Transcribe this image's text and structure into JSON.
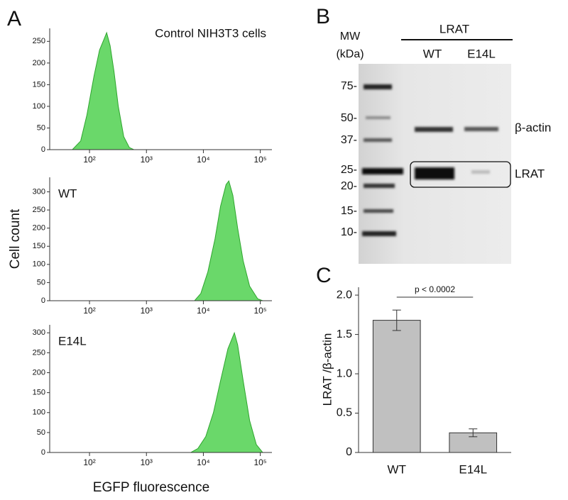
{
  "chart_data": [
    {
      "type": "area",
      "panel": "A",
      "title": "Control NIH3T3 cells",
      "log_x": true,
      "xlim": [
        20,
        160000
      ],
      "xticks": [
        {
          "value": 100,
          "label": "10²"
        },
        {
          "value": 1000,
          "label": "10³"
        },
        {
          "value": 10000,
          "label": "10⁴"
        },
        {
          "value": 100000,
          "label": "10⁵"
        }
      ],
      "ylim": [
        0,
        280
      ],
      "yticks": [
        0,
        50,
        100,
        150,
        200,
        250
      ],
      "color": "#6ad86a",
      "line_color": "#2ea52e",
      "x": [
        50,
        70,
        90,
        120,
        150,
        180,
        200,
        230,
        270,
        320,
        400,
        500,
        600
      ],
      "values": [
        0,
        20,
        80,
        170,
        230,
        255,
        270,
        240,
        180,
        100,
        30,
        5,
        0
      ]
    },
    {
      "type": "area",
      "title": "WT",
      "ylabel": "Cell count",
      "log_x": true,
      "xlim": [
        20,
        160000
      ],
      "xticks": [
        {
          "value": 100,
          "label": "10²"
        },
        {
          "value": 1000,
          "label": "10³"
        },
        {
          "value": 10000,
          "label": "10⁴"
        },
        {
          "value": 100000,
          "label": "10⁵"
        }
      ],
      "ylim": [
        0,
        340
      ],
      "yticks": [
        0,
        50,
        100,
        150,
        200,
        250,
        300
      ],
      "color": "#6ad86a",
      "line_color": "#2ea52e",
      "x": [
        7000,
        9000,
        12000,
        16000,
        20000,
        25000,
        28000,
        33000,
        40000,
        50000,
        65000,
        90000,
        110000
      ],
      "values": [
        0,
        20,
        80,
        170,
        260,
        320,
        330,
        290,
        200,
        110,
        40,
        5,
        0
      ]
    },
    {
      "type": "area",
      "title": "E14L",
      "xlabel": "EGFP fluorescence",
      "log_x": true,
      "xlim": [
        20,
        160000
      ],
      "xticks": [
        {
          "value": 100,
          "label": "10²"
        },
        {
          "value": 1000,
          "label": "10³"
        },
        {
          "value": 10000,
          "label": "10⁴"
        },
        {
          "value": 100000,
          "label": "10⁵"
        }
      ],
      "ylim": [
        0,
        320
      ],
      "yticks": [
        0,
        50,
        100,
        150,
        200,
        250,
        300
      ],
      "color": "#6ad86a",
      "line_color": "#2ea52e",
      "x": [
        6000,
        8000,
        11000,
        15000,
        20000,
        27000,
        35000,
        40000,
        50000,
        65000,
        85000,
        110000
      ],
      "values": [
        0,
        10,
        40,
        100,
        180,
        260,
        300,
        270,
        180,
        80,
        20,
        0
      ]
    },
    {
      "type": "bar",
      "panel": "C",
      "ylabel": "LRAT /β-actin",
      "annotation": "p < 0.0002",
      "categories": [
        "WT",
        "E14L"
      ],
      "values": [
        1.68,
        0.25
      ],
      "errors": [
        0.13,
        0.05
      ],
      "color": "#c0c0c0",
      "ylim": [
        0,
        2.1
      ],
      "yticks": [
        0,
        0.5,
        {
          "value": 1,
          "label": "1.0"
        },
        1.5,
        {
          "value": 2,
          "label": "2.0"
        }
      ]
    }
  ],
  "blot": {
    "panel": "B",
    "mw_label": "MW",
    "mw_unit": "(kDa)",
    "group_label": "LRAT",
    "lanes": [
      "WT",
      "E14L"
    ],
    "markers": [
      "75-",
      "50-",
      "37-",
      "25-",
      "20-",
      "15-",
      "10-"
    ],
    "band_labels": [
      "β-actin",
      "LRAT"
    ]
  }
}
